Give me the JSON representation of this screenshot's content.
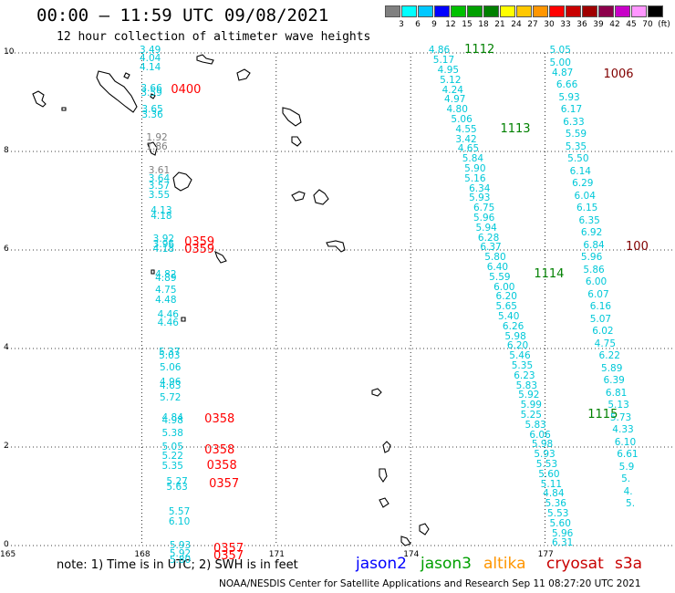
{
  "header": {
    "title": "00:00 – 11:59 UTC 09/08/2021",
    "subtitle": "12 hour collection of altimeter wave heights"
  },
  "colorbar": {
    "unit": "(ft)",
    "colors": [
      "#808080",
      "#00ffff",
      "#00c8ff",
      "#0000ff",
      "#00c000",
      "#00a000",
      "#008000",
      "#ffff00",
      "#ffc800",
      "#ff9600",
      "#ff0000",
      "#c80000",
      "#a00000",
      "#8c004b",
      "#c800c8",
      "#ff96ff",
      "#000000"
    ],
    "ticks": [
      "3",
      "6",
      "9",
      "12",
      "15",
      "18",
      "21",
      "24",
      "27",
      "30",
      "33",
      "36",
      "39",
      "42",
      "45",
      "70"
    ]
  },
  "axes": {
    "x_ticks": [
      "165",
      "168",
      "171",
      "174",
      "177"
    ],
    "y_ticks": [
      "0",
      "2",
      "4",
      "6",
      "8",
      "10"
    ],
    "grid": "dotted"
  },
  "tracks": [
    {
      "name": "track-a",
      "satellite": "cryosat",
      "samples": [
        {
          "lat": 10.05,
          "lon": 167.95,
          "swh": "3.49"
        },
        {
          "lat": 9.88,
          "lon": 167.95,
          "swh": "4.04"
        },
        {
          "lat": 9.7,
          "lon": 167.95,
          "swh": "4.14"
        },
        {
          "lat": 9.28,
          "lon": 167.98,
          "swh": "3.66"
        },
        {
          "lat": 9.18,
          "lon": 167.98,
          "swh": "3.59"
        },
        {
          "lat": 8.85,
          "lon": 168.0,
          "swh": "3.65"
        },
        {
          "lat": 8.74,
          "lon": 168.0,
          "swh": "3.36"
        },
        {
          "lat": 8.28,
          "lon": 168.1,
          "swh": "1.92",
          "color": "#808080"
        },
        {
          "lat": 8.1,
          "lon": 168.1,
          "swh": "1.86",
          "color": "#808080"
        },
        {
          "lat": 7.62,
          "lon": 168.15,
          "swh": "3.61",
          "color": "#808080"
        },
        {
          "lat": 7.44,
          "lon": 168.15,
          "swh": "3.64"
        },
        {
          "lat": 7.3,
          "lon": 168.15,
          "swh": "3.57"
        },
        {
          "lat": 7.12,
          "lon": 168.15,
          "swh": "3.55"
        },
        {
          "lat": 6.8,
          "lon": 168.2,
          "swh": "4.13"
        },
        {
          "lat": 6.68,
          "lon": 168.2,
          "swh": "4.18"
        },
        {
          "lat": 6.22,
          "lon": 168.25,
          "swh": "3.92"
        },
        {
          "lat": 6.12,
          "lon": 168.25,
          "swh": "3.96"
        },
        {
          "lat": 6.02,
          "lon": 168.25,
          "swh": "4.18"
        },
        {
          "lat": 5.5,
          "lon": 168.3,
          "swh": "4.82"
        },
        {
          "lat": 5.42,
          "lon": 168.3,
          "swh": "4.89"
        },
        {
          "lat": 5.18,
          "lon": 168.3,
          "swh": "4.75"
        },
        {
          "lat": 4.98,
          "lon": 168.3,
          "swh": "4.48"
        },
        {
          "lat": 4.68,
          "lon": 168.35,
          "swh": "4.46"
        },
        {
          "lat": 4.52,
          "lon": 168.35,
          "swh": "4.46"
        },
        {
          "lat": 3.92,
          "lon": 168.38,
          "swh": "5.37"
        },
        {
          "lat": 3.85,
          "lon": 168.38,
          "swh": "5.03"
        },
        {
          "lat": 3.62,
          "lon": 168.4,
          "swh": "5.06"
        },
        {
          "lat": 3.32,
          "lon": 168.4,
          "swh": "4.96"
        },
        {
          "lat": 3.24,
          "lon": 168.4,
          "swh": "4.63"
        },
        {
          "lat": 3.0,
          "lon": 168.4,
          "swh": "5.72"
        },
        {
          "lat": 2.6,
          "lon": 168.45,
          "swh": "4.84"
        },
        {
          "lat": 2.53,
          "lon": 168.45,
          "swh": "4.98"
        },
        {
          "lat": 2.28,
          "lon": 168.45,
          "swh": "5.38"
        },
        {
          "lat": 2.0,
          "lon": 168.45,
          "swh": "5.05"
        },
        {
          "lat": 1.82,
          "lon": 168.45,
          "swh": "5.22"
        },
        {
          "lat": 1.62,
          "lon": 168.45,
          "swh": "5.35"
        },
        {
          "lat": 1.3,
          "lon": 168.55,
          "swh": "5.27"
        },
        {
          "lat": 1.18,
          "lon": 168.55,
          "swh": "5.63"
        },
        {
          "lat": 0.68,
          "lon": 168.6,
          "swh": "5.57"
        },
        {
          "lat": 0.48,
          "lon": 168.6,
          "swh": "6.10"
        },
        {
          "lat": 0.0,
          "lon": 168.62,
          "swh": "5.93"
        },
        {
          "lat": -0.17,
          "lon": 168.62,
          "swh": "5.92"
        },
        {
          "lat": -0.3,
          "lon": 168.62,
          "swh": "5.80"
        }
      ]
    },
    {
      "name": "track-b",
      "satellite": "jason3",
      "samples": [
        {
          "lat": 10.05,
          "lon": 174.4,
          "swh": "4.86"
        },
        {
          "lat": 9.85,
          "lon": 174.5,
          "swh": "5.17"
        },
        {
          "lat": 9.65,
          "lon": 174.6,
          "swh": "4.95"
        },
        {
          "lat": 9.45,
          "lon": 174.65,
          "swh": "5.12"
        },
        {
          "lat": 9.25,
          "lon": 174.7,
          "swh": "4.24"
        },
        {
          "lat": 9.05,
          "lon": 174.75,
          "swh": "4.97"
        },
        {
          "lat": 8.85,
          "lon": 174.8,
          "swh": "4.80"
        },
        {
          "lat": 8.65,
          "lon": 174.9,
          "swh": "5.06"
        },
        {
          "lat": 8.45,
          "lon": 175.0,
          "swh": "4.55"
        },
        {
          "lat": 8.25,
          "lon": 175.0,
          "swh": "3.42"
        },
        {
          "lat": 8.05,
          "lon": 175.05,
          "swh": "4.65"
        },
        {
          "lat": 7.85,
          "lon": 175.15,
          "swh": "5.84"
        },
        {
          "lat": 7.65,
          "lon": 175.2,
          "swh": "5.90"
        },
        {
          "lat": 7.45,
          "lon": 175.2,
          "swh": "5.16"
        },
        {
          "lat": 7.25,
          "lon": 175.3,
          "swh": "6.34"
        },
        {
          "lat": 7.05,
          "lon": 175.3,
          "swh": "5.93"
        },
        {
          "lat": 6.85,
          "lon": 175.4,
          "swh": "6.75"
        },
        {
          "lat": 6.65,
          "lon": 175.4,
          "swh": "5.96"
        },
        {
          "lat": 6.45,
          "lon": 175.45,
          "swh": "5.94"
        },
        {
          "lat": 6.25,
          "lon": 175.5,
          "swh": "6.28"
        },
        {
          "lat": 6.05,
          "lon": 175.55,
          "swh": "6.37"
        },
        {
          "lat": 5.85,
          "lon": 175.65,
          "swh": "5.80"
        },
        {
          "lat": 5.65,
          "lon": 175.7,
          "swh": "6.40"
        },
        {
          "lat": 5.45,
          "lon": 175.75,
          "swh": "5.59"
        },
        {
          "lat": 5.25,
          "lon": 175.85,
          "swh": "6.00"
        },
        {
          "lat": 5.05,
          "lon": 175.9,
          "swh": "6.20"
        },
        {
          "lat": 4.85,
          "lon": 175.9,
          "swh": "5.65"
        },
        {
          "lat": 4.65,
          "lon": 175.95,
          "swh": "5.40"
        },
        {
          "lat": 4.45,
          "lon": 176.05,
          "swh": "6.26"
        },
        {
          "lat": 4.25,
          "lon": 176.1,
          "swh": "5.98"
        },
        {
          "lat": 4.05,
          "lon": 176.15,
          "swh": "6.20"
        },
        {
          "lat": 3.85,
          "lon": 176.2,
          "swh": "5.46"
        },
        {
          "lat": 3.65,
          "lon": 176.25,
          "swh": "5.35"
        },
        {
          "lat": 3.45,
          "lon": 176.3,
          "swh": "6.23"
        },
        {
          "lat": 3.25,
          "lon": 176.35,
          "swh": "5.83"
        },
        {
          "lat": 3.05,
          "lon": 176.4,
          "swh": "5.92"
        },
        {
          "lat": 2.85,
          "lon": 176.45,
          "swh": "5.99"
        },
        {
          "lat": 2.65,
          "lon": 176.45,
          "swh": "5.25"
        },
        {
          "lat": 2.45,
          "lon": 176.55,
          "swh": "5.83"
        },
        {
          "lat": 2.25,
          "lon": 176.65,
          "swh": "6.06"
        },
        {
          "lat": 2.05,
          "lon": 176.7,
          "swh": "5.98"
        },
        {
          "lat": 1.85,
          "lon": 176.75,
          "swh": "5.93"
        },
        {
          "lat": 1.65,
          "lon": 176.8,
          "swh": "5.53"
        },
        {
          "lat": 1.45,
          "lon": 176.85,
          "swh": "5.60"
        },
        {
          "lat": 1.25,
          "lon": 176.9,
          "swh": "5.11"
        },
        {
          "lat": 1.05,
          "lon": 176.95,
          "swh": "4.84"
        },
        {
          "lat": 0.85,
          "lon": 177.0,
          "swh": "5.36"
        },
        {
          "lat": 0.65,
          "lon": 177.05,
          "swh": "5.53"
        },
        {
          "lat": 0.45,
          "lon": 177.1,
          "swh": "5.60"
        },
        {
          "lat": 0.25,
          "lon": 177.15,
          "swh": "5.96"
        },
        {
          "lat": 0.05,
          "lon": 177.15,
          "swh": "6.31"
        }
      ]
    },
    {
      "name": "track-c",
      "satellite": "jason3",
      "samples": [
        {
          "lat": 10.05,
          "lon": 177.1,
          "swh": "5.05"
        },
        {
          "lat": 9.8,
          "lon": 177.1,
          "swh": "5.00"
        },
        {
          "lat": 9.6,
          "lon": 177.15,
          "swh": "4.87"
        },
        {
          "lat": 9.35,
          "lon": 177.25,
          "swh": "6.66"
        },
        {
          "lat": 9.1,
          "lon": 177.3,
          "swh": "5.93"
        },
        {
          "lat": 8.85,
          "lon": 177.35,
          "swh": "6.17"
        },
        {
          "lat": 8.6,
          "lon": 177.4,
          "swh": "6.33"
        },
        {
          "lat": 8.35,
          "lon": 177.45,
          "swh": "5.59"
        },
        {
          "lat": 8.1,
          "lon": 177.45,
          "swh": "5.35"
        },
        {
          "lat": 7.85,
          "lon": 177.5,
          "swh": "5.50"
        },
        {
          "lat": 7.6,
          "lon": 177.55,
          "swh": "6.14"
        },
        {
          "lat": 7.35,
          "lon": 177.6,
          "swh": "6.29"
        },
        {
          "lat": 7.1,
          "lon": 177.65,
          "swh": "6.04"
        },
        {
          "lat": 6.85,
          "lon": 177.7,
          "swh": "6.15"
        },
        {
          "lat": 6.6,
          "lon": 177.75,
          "swh": "6.35"
        },
        {
          "lat": 6.35,
          "lon": 177.8,
          "swh": "6.92"
        },
        {
          "lat": 6.1,
          "lon": 177.85,
          "swh": "6.84"
        },
        {
          "lat": 5.85,
          "lon": 177.8,
          "swh": "5.96"
        },
        {
          "lat": 5.6,
          "lon": 177.85,
          "swh": "5.86"
        },
        {
          "lat": 5.35,
          "lon": 177.9,
          "swh": "6.00"
        },
        {
          "lat": 5.1,
          "lon": 177.95,
          "swh": "6.07"
        },
        {
          "lat": 4.85,
          "lon": 178.0,
          "swh": "6.16"
        },
        {
          "lat": 4.6,
          "lon": 178.0,
          "swh": "5.07"
        },
        {
          "lat": 4.35,
          "lon": 178.05,
          "swh": "6.02"
        },
        {
          "lat": 4.1,
          "lon": 178.1,
          "swh": "4.75"
        },
        {
          "lat": 3.85,
          "lon": 178.2,
          "swh": "6.22"
        },
        {
          "lat": 3.6,
          "lon": 178.25,
          "swh": "5.89"
        },
        {
          "lat": 3.35,
          "lon": 178.3,
          "swh": "6.39"
        },
        {
          "lat": 3.1,
          "lon": 178.35,
          "swh": "6.81"
        },
        {
          "lat": 2.85,
          "lon": 178.4,
          "swh": "5.13"
        },
        {
          "lat": 2.6,
          "lon": 178.45,
          "swh": "5.73"
        },
        {
          "lat": 2.35,
          "lon": 178.5,
          "swh": "4.33"
        },
        {
          "lat": 2.1,
          "lon": 178.55,
          "swh": "6.10"
        },
        {
          "lat": 1.85,
          "lon": 178.6,
          "swh": "6.61"
        },
        {
          "lat": 1.6,
          "lon": 178.65,
          "swh": "5.9"
        },
        {
          "lat": 1.35,
          "lon": 178.7,
          "swh": "5."
        },
        {
          "lat": 1.1,
          "lon": 178.75,
          "swh": "4."
        },
        {
          "lat": 0.85,
          "lon": 178.8,
          "swh": "5."
        }
      ]
    }
  ],
  "time_labels": [
    {
      "text": "0400",
      "lat": 9.25,
      "lon": 168.65,
      "color": "#ff0000"
    },
    {
      "text": "0359",
      "lat": 6.15,
      "lon": 168.95,
      "color": "#ff0000"
    },
    {
      "text": "0359",
      "lat": 6.0,
      "lon": 168.95,
      "color": "#ff0000"
    },
    {
      "text": "0358",
      "lat": 2.55,
      "lon": 169.4,
      "color": "#ff0000"
    },
    {
      "text": "0358",
      "lat": 1.92,
      "lon": 169.4,
      "color": "#ff0000"
    },
    {
      "text": "0358",
      "lat": 1.62,
      "lon": 169.45,
      "color": "#ff0000"
    },
    {
      "text": "0357",
      "lat": 1.25,
      "lon": 169.5,
      "color": "#ff0000"
    },
    {
      "text": "0357",
      "lat": -0.08,
      "lon": 169.6,
      "color": "#ff0000"
    },
    {
      "text": "0357",
      "lat": -0.22,
      "lon": 169.6,
      "color": "#ff0000"
    },
    {
      "text": "1112",
      "lat": 10.05,
      "lon": 175.2,
      "color": "#008000"
    },
    {
      "text": "1113",
      "lat": 8.45,
      "lon": 176.0,
      "color": "#008000"
    },
    {
      "text": "1114",
      "lat": 5.5,
      "lon": 176.75,
      "color": "#008000"
    },
    {
      "text": "1115",
      "lat": 2.65,
      "lon": 177.95,
      "color": "#008000"
    },
    {
      "text": "1006",
      "lat": 9.55,
      "lon": 178.3,
      "color": "#800000"
    },
    {
      "text": "100",
      "lat": 6.05,
      "lon": 178.8,
      "color": "#800000"
    }
  ],
  "islands_description": "coastline outlines of atolls",
  "legend": {
    "note": "note: 1) Time is in UTC; 2) SWH is in feet",
    "satellites": [
      {
        "name": "jason2",
        "color": "#0000ff"
      },
      {
        "name": "jason3",
        "color": "#00a000"
      },
      {
        "name": "altika",
        "color": "#ff9600"
      },
      {
        "name": "cryosat",
        "color": "#c80000"
      },
      {
        "name": "s3a",
        "color": "#c80000"
      }
    ]
  },
  "credit": "NOAA/NESDIS Center for Satellite Applications and Research   Sep 11 08:27:20 UTC 2021"
}
